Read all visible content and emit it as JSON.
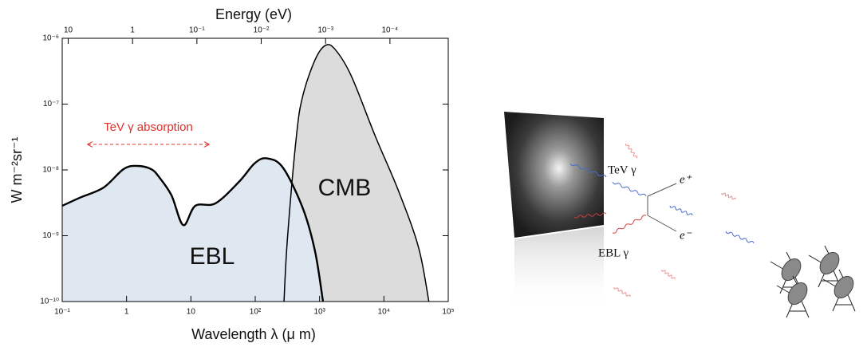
{
  "chart_data": {
    "type": "area",
    "x2label": "Energy (eV)",
    "xlabel": "Wavelength λ  (μ m)",
    "ylabel": "W m⁻²sr⁻¹",
    "annotation": "TeV γ absorption",
    "xscale": "log",
    "yscale": "log",
    "xlim": [
      0.1,
      100000
    ],
    "ylim": [
      1e-10,
      1e-06
    ],
    "x2lim": [
      12.398,
      1.2398e-05
    ],
    "xticks": [
      {
        "value": 0.1,
        "label": "10⁻¹"
      },
      1,
      10,
      {
        "value": 100,
        "label": "10²"
      },
      {
        "value": 1000,
        "label": "10³"
      },
      {
        "value": 10000,
        "label": "10⁴"
      },
      {
        "value": 100000,
        "label": "10⁵"
      }
    ],
    "x2ticks": [
      10,
      1,
      {
        "value": 0.1,
        "label": "10⁻¹"
      },
      {
        "value": 0.01,
        "label": "10⁻²"
      },
      {
        "value": 0.001,
        "label": "10⁻³"
      },
      {
        "value": 0.0001,
        "label": "10⁻⁴"
      }
    ],
    "yticks": [
      {
        "value": 1e-10,
        "label": "10⁻¹⁰"
      },
      {
        "value": 1e-09,
        "label": "10⁻⁹"
      },
      {
        "value": 1e-08,
        "label": "10⁻⁸"
      },
      {
        "value": 1e-07,
        "label": "10⁻⁷"
      },
      {
        "value": 1e-06,
        "label": "10⁻⁶"
      }
    ],
    "series": [
      {
        "name": "CMB",
        "color": "#dcdcdc",
        "x": [
          280,
          316,
          437,
          550,
          850,
          1230,
          1740,
          3100,
          7300,
          17000,
          34600,
          50000
        ],
        "values": [
          1e-10,
          8.8e-10,
          3.3e-08,
          1.35e-07,
          4.7e-07,
          7.8e-07,
          6.8e-07,
          2.7e-07,
          3.3e-08,
          4.7e-09,
          6.6e-10,
          1e-10
        ]
      },
      {
        "name": "EBL",
        "color": "#dfe7f1",
        "x": [
          0.1,
          0.19,
          0.44,
          0.9,
          1.46,
          2.4,
          3.2,
          5,
          7.6,
          11.7,
          24,
          56,
          98,
          151,
          270,
          550,
          850,
          1130
        ],
        "values": [
          2.85e-09,
          3.8e-09,
          5.4e-09,
          1.03e-08,
          1.15e-08,
          1.03e-08,
          7.8e-09,
          4.1e-09,
          1.45e-09,
          2.85e-09,
          3.1e-09,
          6.6e-09,
          1.26e-08,
          1.5e-08,
          1.08e-08,
          2.6e-09,
          5.8e-10,
          1e-10
        ]
      }
    ]
  },
  "diagram": {
    "labels": [
      "TeV γ",
      "e⁺",
      "EBL γ",
      "e⁻"
    ]
  }
}
